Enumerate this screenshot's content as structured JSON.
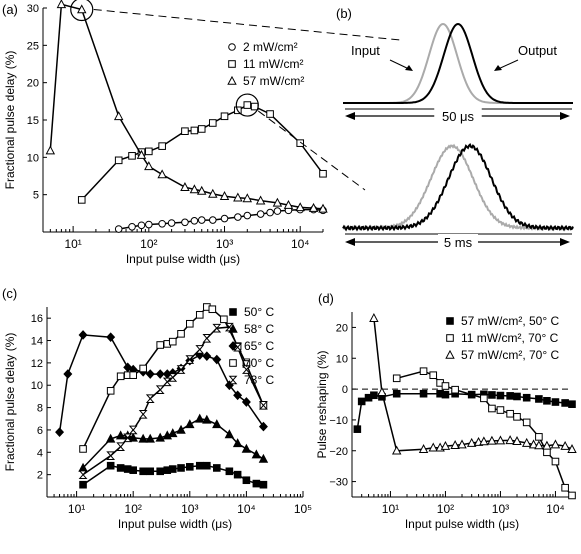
{
  "panels": {
    "a": {
      "label": "(a)"
    },
    "b": {
      "label": "(b)"
    },
    "c": {
      "label": "(c)"
    },
    "d": {
      "label": "(d)"
    }
  },
  "chart_data": [
    {
      "id": "a",
      "type": "line",
      "xscale": "log",
      "xlim": [
        4,
        20000
      ],
      "ylim": [
        0,
        30
      ],
      "xlabel": "Input pulse width (μs)",
      "ylabel": "Fractional pulse delay (%)",
      "xticks": [
        10,
        100,
        1000,
        10000
      ],
      "xticklabels": [
        "10¹",
        "10²",
        "10³",
        "10⁴"
      ],
      "yticks": [
        5,
        10,
        15,
        20,
        25,
        30
      ],
      "legend_position": "top-right",
      "series": [
        {
          "name": "2 mW/cm²",
          "marker": "circle",
          "x": [
            40,
            60,
            80,
            100,
            150,
            200,
            300,
            400,
            500,
            700,
            1000,
            1500,
            2000,
            3000,
            4000,
            5000,
            7000,
            10000,
            15000,
            20000
          ],
          "y": [
            0.4,
            0.7,
            0.9,
            1.0,
            1.1,
            1.2,
            1.3,
            1.5,
            1.6,
            1.6,
            1.8,
            2.0,
            2.2,
            2.4,
            2.6,
            2.8,
            2.9,
            3.0,
            3.0,
            2.9
          ]
        },
        {
          "name": "11 mW/cm²",
          "marker": "square",
          "x": [
            13,
            40,
            60,
            80,
            100,
            150,
            300,
            400,
            500,
            700,
            1000,
            1500,
            2000,
            2500,
            4000,
            10000,
            20000
          ],
          "y": [
            4.3,
            9.6,
            10.2,
            10.7,
            10.8,
            11.5,
            13.5,
            13.6,
            13.8,
            14.6,
            15.5,
            16.3,
            17.0,
            16.8,
            15.8,
            11.9,
            7.8
          ]
        },
        {
          "name": "57 mW/cm²",
          "marker": "triangle",
          "x": [
            5,
            7,
            13,
            40,
            80,
            100,
            150,
            300,
            400,
            500,
            700,
            1000,
            1500,
            2000,
            3000,
            5000,
            7000,
            10000,
            15000,
            20000
          ],
          "y": [
            10.9,
            30.5,
            29.8,
            15.5,
            10.3,
            8.8,
            7.7,
            6.0,
            5.7,
            5.5,
            5.1,
            4.8,
            4.6,
            4.5,
            4.2,
            3.9,
            3.6,
            3.3,
            3.2,
            3.1
          ]
        }
      ],
      "highlights": [
        {
          "x": 13,
          "y": 29.8
        },
        {
          "x": 2000,
          "y": 17.0
        }
      ]
    },
    {
      "id": "b",
      "type": "line",
      "plots": [
        {
          "scale_label": "50 μs",
          "input_label": "Input",
          "output_label": "Output"
        },
        {
          "scale_label": "5 ms"
        }
      ]
    },
    {
      "id": "c",
      "type": "line",
      "xscale": "log",
      "xlim": [
        3,
        100000
      ],
      "ylim": [
        0,
        17
      ],
      "xlabel": "Input pulse width (μs)",
      "ylabel": "Fractional pulse delay (%)",
      "xticks": [
        10,
        100,
        1000,
        10000,
        100000
      ],
      "xticklabels": [
        "10¹",
        "10²",
        "10³",
        "10⁴",
        "10⁵"
      ],
      "yticks": [
        2,
        4,
        6,
        8,
        10,
        12,
        14,
        16
      ],
      "legend_position": "top-right",
      "series": [
        {
          "name": "50° C",
          "marker": "filled-square",
          "x": [
            13,
            40,
            60,
            80,
            100,
            150,
            200,
            300,
            400,
            500,
            700,
            1000,
            1500,
            2000,
            3000,
            5000,
            7000,
            10000,
            15000,
            20000
          ],
          "y": [
            1.1,
            2.8,
            2.6,
            2.5,
            2.4,
            2.3,
            2.3,
            2.3,
            2.4,
            2.5,
            2.6,
            2.7,
            2.8,
            2.8,
            2.6,
            2.3,
            2.0,
            1.5,
            1.2,
            1.1
          ]
        },
        {
          "name": "58° C",
          "marker": "filled-triangle",
          "x": [
            13,
            40,
            60,
            80,
            100,
            150,
            200,
            300,
            400,
            500,
            700,
            1000,
            1500,
            2000,
            3000,
            5000,
            7000,
            10000,
            15000,
            20000
          ],
          "y": [
            2.6,
            5.2,
            5.5,
            5.5,
            5.3,
            5.2,
            5.2,
            5.3,
            5.5,
            5.7,
            6.0,
            6.5,
            7.0,
            6.9,
            6.5,
            5.6,
            4.8,
            4.3,
            3.8,
            3.4
          ]
        },
        {
          "name": "65° C",
          "marker": "filled-diamond",
          "x": [
            5,
            7,
            13,
            40,
            80,
            100,
            150,
            200,
            300,
            400,
            500,
            700,
            1000,
            1500,
            2000,
            3000,
            5000,
            7000,
            10000,
            20000
          ],
          "y": [
            5.8,
            11.0,
            14.5,
            14.3,
            11.6,
            11.4,
            11.2,
            11.0,
            11.0,
            11.0,
            11.1,
            11.5,
            12.2,
            12.7,
            12.6,
            12.3,
            10.0,
            9.1,
            8.5,
            6.3
          ]
        },
        {
          "name": "70° C",
          "marker": "square",
          "x": [
            13,
            40,
            60,
            80,
            100,
            150,
            300,
            400,
            500,
            700,
            1000,
            1500,
            2000,
            2500,
            4000,
            7000,
            10000,
            20000
          ],
          "y": [
            4.3,
            9.5,
            10.8,
            10.9,
            10.9,
            11.5,
            13.6,
            13.7,
            13.9,
            14.6,
            15.5,
            16.3,
            17.0,
            16.8,
            15.9,
            13.5,
            11.9,
            8.2
          ]
        },
        {
          "name": "73° C",
          "marker": "hourglass",
          "x": [
            13,
            40,
            60,
            80,
            100,
            150,
            200,
            300,
            400,
            500,
            700,
            1000,
            1500,
            2000,
            3000,
            5000,
            7000,
            10000,
            20000
          ],
          "y": [
            2.0,
            3.7,
            4.5,
            5.3,
            6.0,
            7.4,
            8.8,
            9.6,
            10.3,
            10.7,
            11.4,
            12.3,
            13.2,
            14.2,
            15.1,
            15.2,
            13.4,
            11.4,
            8.2
          ]
        }
      ]
    },
    {
      "id": "d",
      "type": "line",
      "xscale": "log",
      "xlim": [
        2,
        20000
      ],
      "ylim": [
        -35,
        25
      ],
      "xlabel": "Input pulse width (μs)",
      "ylabel": "Pulse reshaping (%)",
      "xticks": [
        10,
        100,
        1000,
        10000
      ],
      "xticklabels": [
        "10¹",
        "10²",
        "10³",
        "10⁴"
      ],
      "yticks": [
        20,
        10,
        0,
        -10,
        -20,
        -30
      ],
      "legend_position": "top-right",
      "series": [
        {
          "name": "57 mW/cm², 50° C",
          "marker": "filled-square",
          "x": [
            2.5,
            3,
            4,
            5,
            7,
            13,
            40,
            80,
            100,
            150,
            300,
            500,
            700,
            1000,
            1500,
            2000,
            3000,
            5000,
            7000,
            10000,
            15000,
            20000
          ],
          "y": [
            -13,
            -4,
            -2.8,
            -2.0,
            -2.5,
            -1.5,
            -1.5,
            -1.5,
            -1.8,
            -1.5,
            -1.8,
            -1.7,
            -1.9,
            -2.1,
            -2.2,
            -2.4,
            -2.8,
            -3.2,
            -3.8,
            -4.2,
            -4.5,
            -4.9
          ]
        },
        {
          "name": "11 mW/cm², 70° C",
          "marker": "square",
          "x": [
            13,
            40,
            60,
            80,
            100,
            150,
            500,
            700,
            1000,
            1500,
            2000,
            3000,
            5000,
            7000,
            10000,
            15000,
            20000
          ],
          "y": [
            3.5,
            5.8,
            4.5,
            2.0,
            1.0,
            -0.2,
            -3.0,
            -6.3,
            -6.8,
            -8.0,
            -9.0,
            -10.8,
            -15.5,
            -20.5,
            -23.5,
            -32.0,
            -34.5
          ]
        },
        {
          "name": "57 mW/cm², 70° C",
          "marker": "triangle",
          "x": [
            5,
            7,
            13,
            40,
            60,
            80,
            100,
            150,
            200,
            300,
            400,
            500,
            700,
            1000,
            1500,
            2000,
            3000,
            4000,
            5000,
            7000,
            10000,
            15000,
            20000
          ],
          "y": [
            23.0,
            -1.0,
            -20.0,
            -19.5,
            -19.0,
            -19.0,
            -18.5,
            -18.2,
            -18.0,
            -17.5,
            -17.2,
            -17.0,
            -16.8,
            -16.7,
            -16.6,
            -16.9,
            -17.5,
            -18.0,
            -18.3,
            -18.4,
            -18.0,
            -18.5,
            -19.5
          ]
        }
      ]
    }
  ]
}
